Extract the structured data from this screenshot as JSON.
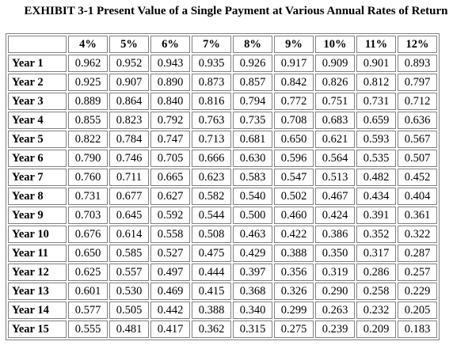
{
  "title": "EXHIBIT 3-1 Present Value of a Single Payment at Various Annual Rates of Return",
  "table": {
    "columns": [
      "4%",
      "5%",
      "6%",
      "7%",
      "8%",
      "9%",
      "10%",
      "11%",
      "12%"
    ],
    "rows": [
      {
        "label": "Year 1",
        "values": [
          "0.962",
          "0.952",
          "0.943",
          "0.935",
          "0.926",
          "0.917",
          "0.909",
          "0.901",
          "0.893"
        ]
      },
      {
        "label": "Year 2",
        "values": [
          "0.925",
          "0.907",
          "0.890",
          "0.873",
          "0.857",
          "0.842",
          "0.826",
          "0.812",
          "0.797"
        ]
      },
      {
        "label": "Year 3",
        "values": [
          "0.889",
          "0.864",
          "0.840",
          "0.816",
          "0.794",
          "0.772",
          "0.751",
          "0.731",
          "0.712"
        ]
      },
      {
        "label": "Year 4",
        "values": [
          "0.855",
          "0.823",
          "0.792",
          "0.763",
          "0.735",
          "0.708",
          "0.683",
          "0.659",
          "0.636"
        ]
      },
      {
        "label": "Year 5",
        "values": [
          "0.822",
          "0.784",
          "0.747",
          "0.713",
          "0.681",
          "0.650",
          "0.621",
          "0.593",
          "0.567"
        ]
      },
      {
        "label": "Year 6",
        "values": [
          "0.790",
          "0.746",
          "0.705",
          "0.666",
          "0.630",
          "0.596",
          "0.564",
          "0.535",
          "0.507"
        ]
      },
      {
        "label": "Year 7",
        "values": [
          "0.760",
          "0.711",
          "0.665",
          "0.623",
          "0.583",
          "0.547",
          "0.513",
          "0.482",
          "0.452"
        ]
      },
      {
        "label": "Year 8",
        "values": [
          "0.731",
          "0.677",
          "0.627",
          "0.582",
          "0.540",
          "0.502",
          "0.467",
          "0.434",
          "0.404"
        ]
      },
      {
        "label": "Year 9",
        "values": [
          "0.703",
          "0.645",
          "0.592",
          "0.544",
          "0.500",
          "0.460",
          "0.424",
          "0.391",
          "0.361"
        ]
      },
      {
        "label": "Year 10",
        "values": [
          "0.676",
          "0.614",
          "0.558",
          "0.508",
          "0.463",
          "0.422",
          "0.386",
          "0.352",
          "0.322"
        ]
      },
      {
        "label": "Year 11",
        "values": [
          "0.650",
          "0.585",
          "0.527",
          "0.475",
          "0.429",
          "0.388",
          "0.350",
          "0.317",
          "0.287"
        ]
      },
      {
        "label": "Year 12",
        "values": [
          "0.625",
          "0.557",
          "0.497",
          "0.444",
          "0.397",
          "0.356",
          "0.319",
          "0.286",
          "0.257"
        ]
      },
      {
        "label": "Year 13",
        "values": [
          "0.601",
          "0.530",
          "0.469",
          "0.415",
          "0.368",
          "0.326",
          "0.290",
          "0.258",
          "0.229"
        ]
      },
      {
        "label": "Year 14",
        "values": [
          "0.577",
          "0.505",
          "0.442",
          "0.388",
          "0.340",
          "0.299",
          "0.263",
          "0.232",
          "0.205"
        ]
      },
      {
        "label": "Year 15",
        "values": [
          "0.555",
          "0.481",
          "0.417",
          "0.362",
          "0.315",
          "0.275",
          "0.239",
          "0.209",
          "0.183"
        ]
      }
    ]
  }
}
